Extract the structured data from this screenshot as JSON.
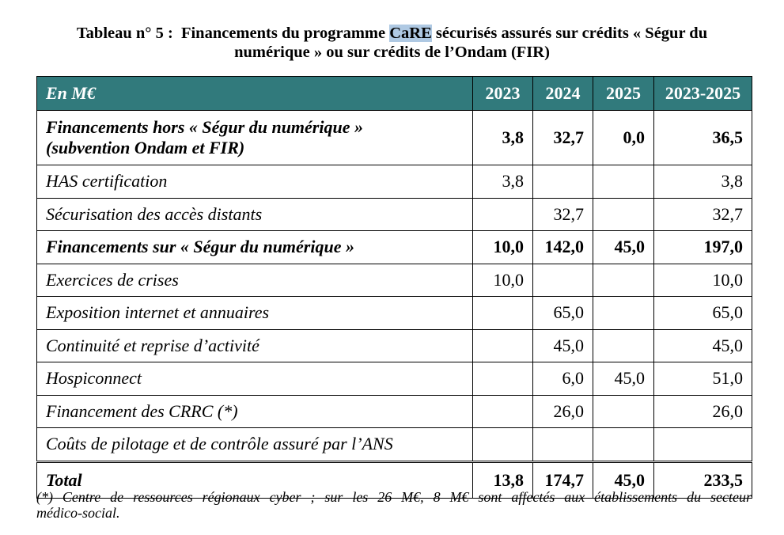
{
  "title": {
    "label": "Tableau n° 5 :",
    "line1_before": "Financements du programme",
    "highlight": "CaRE",
    "line1_after": "sécurisés assurés sur crédits « Ségur du",
    "line2": "numérique » ou sur crédits de l’Ondam (FIR)"
  },
  "table": {
    "header": {
      "label": "En M€",
      "columns": [
        "2023",
        "2024",
        "2025",
        "2023-2025"
      ]
    },
    "rows": [
      {
        "label_lines": [
          "Financements hors « Ségur du numérique »",
          "(subvention Ondam et FIR)"
        ],
        "bold": true,
        "values": [
          "3,8",
          "32,7",
          "0,0",
          "36,5"
        ]
      },
      {
        "label": "HAS certification",
        "bold": false,
        "values": [
          "3,8",
          "",
          "",
          "3,8"
        ]
      },
      {
        "label": "Sécurisation des accès distants",
        "bold": false,
        "values": [
          "",
          "32,7",
          "",
          "32,7"
        ]
      },
      {
        "label": "Financements sur « Ségur du numérique »",
        "bold": true,
        "values": [
          "10,0",
          "142,0",
          "45,0",
          "197,0"
        ]
      },
      {
        "label": "Exercices de crises",
        "bold": false,
        "values": [
          "10,0",
          "",
          "",
          "10,0"
        ]
      },
      {
        "label": "Exposition internet et annuaires",
        "bold": false,
        "values": [
          "",
          "65,0",
          "",
          "65,0"
        ]
      },
      {
        "label": "Continuité et reprise d’activité",
        "bold": false,
        "values": [
          "",
          "45,0",
          "",
          "45,0"
        ]
      },
      {
        "label": "Hospiconnect",
        "bold": false,
        "values": [
          "",
          "6,0",
          "45,0",
          "51,0"
        ]
      },
      {
        "label": "Financement des CRRC (*)",
        "bold": false,
        "values": [
          "",
          "26,0",
          "",
          "26,0"
        ]
      },
      {
        "label": "Coûts de pilotage et de contrôle assuré par l’ANS",
        "bold": false,
        "values": [
          "",
          "",
          "",
          ""
        ]
      }
    ],
    "total": {
      "label": "Total",
      "values": [
        "13,8",
        "174,7",
        "45,0",
        "233,5"
      ]
    }
  },
  "footnote": {
    "line1": "(*) Centre de ressources régionaux cyber ; sur les 26 M€, 8 M€ sont affectés aux établissements du secteur",
    "line2": "médico-social."
  },
  "colors": {
    "header_bg": "#317a7c",
    "header_text": "#ffffff",
    "highlight": "#afc9e3",
    "border": "#000000"
  }
}
